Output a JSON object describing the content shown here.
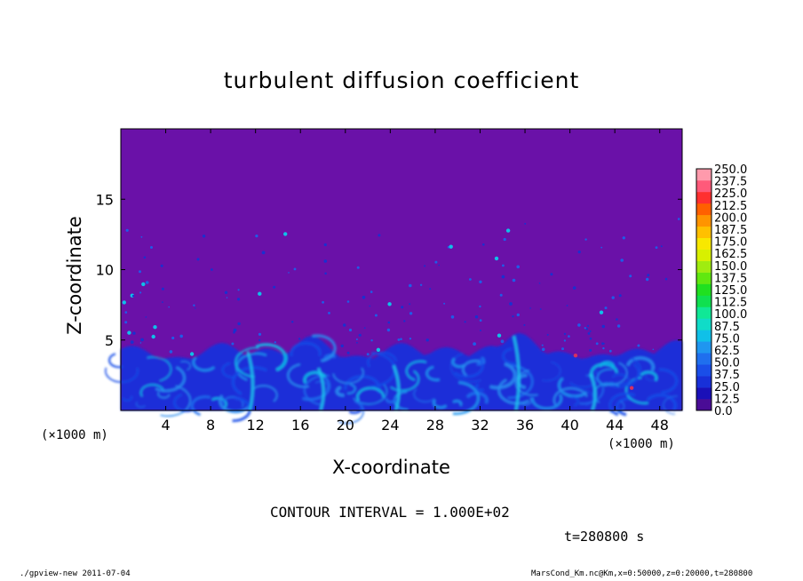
{
  "chart_data": {
    "type": "heatmap",
    "title": "turbulent diffusion coefficient",
    "xlabel": "X-coordinate",
    "ylabel": "Z-coordinate",
    "x_unit_label_left": "(×1000 m)",
    "x_unit_label_right": "(×1000 m)",
    "xlim": [
      0,
      50
    ],
    "ylim": [
      0,
      20
    ],
    "xticks": [
      "4",
      "8",
      "12",
      "16",
      "20",
      "24",
      "28",
      "32",
      "36",
      "40",
      "44",
      "48"
    ],
    "yticks": [
      "5",
      "10",
      "15"
    ],
    "colorbar": {
      "levels": [
        "0.0",
        "12.5",
        "25.0",
        "37.5",
        "50.0",
        "62.5",
        "75.0",
        "87.5",
        "100.0",
        "112.5",
        "125.0",
        "137.5",
        "150.0",
        "162.5",
        "175.0",
        "187.5",
        "200.0",
        "212.5",
        "225.0",
        "237.5",
        "250.0"
      ],
      "colors": [
        "#4a0c96",
        "#1a10b8",
        "#1830d8",
        "#1a4ee8",
        "#1f6fee",
        "#1f96f0",
        "#10c0e8",
        "#10dcc8",
        "#10e896",
        "#10e050",
        "#20e020",
        "#60e810",
        "#a0ec10",
        "#d8f000",
        "#f8e800",
        "#ffc000",
        "#ff9400",
        "#ff6000",
        "#ff3030",
        "#ff5a7a",
        "#ff9aac"
      ]
    },
    "background_value_color": "#6a11a8",
    "contour_interval_label": "CONTOUR INTERVAL = 1.000E+02",
    "time_label": "t=280800 s",
    "footer_left": "./gpview-new  2011-07-04",
    "footer_right": "MarsCond_Km.nc@Km,x=0:50000,z=0:20000,t=280800"
  }
}
